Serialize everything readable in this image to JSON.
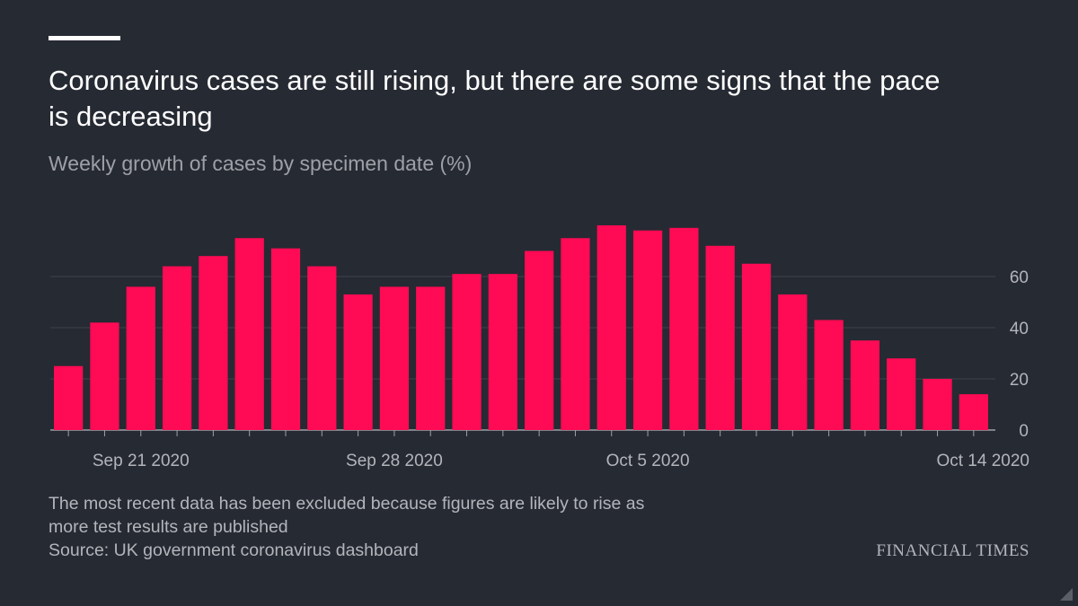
{
  "header": {
    "title": "Coronavirus cases are still rising, but there are some signs that the pace is decreasing",
    "subtitle": "Weekly growth of cases by specimen date (%)"
  },
  "footer": {
    "note_line1": "The most recent data has been excluded because figures are likely to rise as",
    "note_line2": "more test results are published",
    "source": "Source: UK government coronavirus dashboard",
    "logo": "FINANCIAL TIMES"
  },
  "colors": {
    "background": "#262a33",
    "bar": "#ff0a54",
    "axis": "#9ea0a6",
    "text": "#ffffff"
  },
  "chart_data": {
    "type": "bar",
    "title": "Coronavirus cases are still rising, but there are some signs that the pace is decreasing",
    "subtitle": "Weekly growth of cases by specimen date (%)",
    "xlabel": "",
    "ylabel": "",
    "x_tick_labels": [
      "Sep 21 2020",
      "Sep 28 2020",
      "Oct 5 2020",
      "Oct 14 2020"
    ],
    "y_ticks": [
      0,
      20,
      40,
      60
    ],
    "ylim": [
      0,
      80
    ],
    "y_axis_side": "right",
    "grid": true,
    "categories": [
      "2020-09-19",
      "2020-09-20",
      "2020-09-21",
      "2020-09-22",
      "2020-09-23",
      "2020-09-24",
      "2020-09-25",
      "2020-09-26",
      "2020-09-27",
      "2020-09-28",
      "2020-09-29",
      "2020-09-30",
      "2020-10-01",
      "2020-10-02",
      "2020-10-03",
      "2020-10-04",
      "2020-10-05",
      "2020-10-06",
      "2020-10-07",
      "2020-10-08",
      "2020-10-09",
      "2020-10-10",
      "2020-10-11",
      "2020-10-12",
      "2020-10-13",
      "2020-10-14"
    ],
    "values": [
      25,
      42,
      56,
      64,
      68,
      75,
      71,
      64,
      53,
      56,
      56,
      61,
      61,
      70,
      75,
      80,
      78,
      79,
      72,
      65,
      53,
      43,
      35,
      28,
      20,
      14
    ]
  }
}
